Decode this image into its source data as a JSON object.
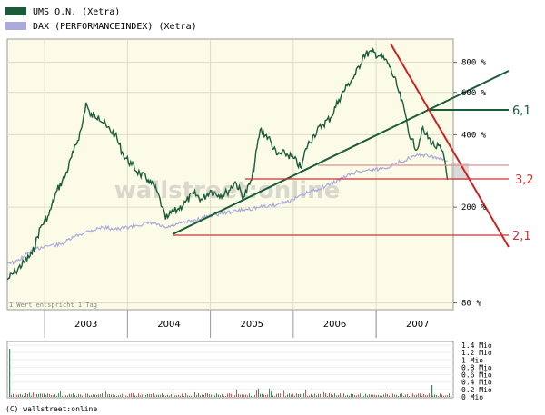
{
  "chart_data": {
    "type": "line",
    "legend": [
      {
        "name": "UMS O.N. (Xetra)",
        "color": "#1a5c3a"
      },
      {
        "name": "DAX (PERFORMANCEINDEX) (Xetra)",
        "color": "#aaaadd"
      }
    ],
    "x_ticks": [
      "2003",
      "2004",
      "2005",
      "2006",
      "2007"
    ],
    "x_range": [
      2002.55,
      2007.93
    ],
    "y_scale": "log",
    "y_range": [
      75,
      1000
    ],
    "y_ticks": [
      {
        "value": 80,
        "label": "80 %"
      },
      {
        "value": 200,
        "label": "200 %"
      },
      {
        "value": 400,
        "label": "400 %"
      },
      {
        "value": 600,
        "label": "600 %"
      },
      {
        "value": 800,
        "label": "800 %"
      }
    ],
    "series": [
      {
        "name": "UMS O.N. (Xetra)",
        "color": "#1a5c3a",
        "points": [
          [
            2002.55,
            100
          ],
          [
            2002.65,
            108
          ],
          [
            2002.75,
            118
          ],
          [
            2002.85,
            128
          ],
          [
            2002.95,
            165
          ],
          [
            2003.05,
            185
          ],
          [
            2003.15,
            235
          ],
          [
            2003.25,
            270
          ],
          [
            2003.35,
            340
          ],
          [
            2003.45,
            430
          ],
          [
            2003.5,
            545
          ],
          [
            2003.55,
            480
          ],
          [
            2003.65,
            480
          ],
          [
            2003.75,
            430
          ],
          [
            2003.85,
            400
          ],
          [
            2003.95,
            330
          ],
          [
            2004.05,
            300
          ],
          [
            2004.15,
            275
          ],
          [
            2004.25,
            260
          ],
          [
            2004.35,
            235
          ],
          [
            2004.42,
            200
          ],
          [
            2004.46,
            178
          ],
          [
            2004.5,
            185
          ],
          [
            2004.6,
            195
          ],
          [
            2004.7,
            210
          ],
          [
            2004.8,
            228
          ],
          [
            2004.9,
            215
          ],
          [
            2005.0,
            235
          ],
          [
            2005.1,
            225
          ],
          [
            2005.2,
            230
          ],
          [
            2005.3,
            255
          ],
          [
            2005.4,
            220
          ],
          [
            2005.5,
            260
          ],
          [
            2005.6,
            420
          ],
          [
            2005.7,
            390
          ],
          [
            2005.8,
            330
          ],
          [
            2005.9,
            335
          ],
          [
            2006.0,
            320
          ],
          [
            2006.1,
            290
          ],
          [
            2006.15,
            350
          ],
          [
            2006.25,
            400
          ],
          [
            2006.35,
            440
          ],
          [
            2006.45,
            470
          ],
          [
            2006.55,
            560
          ],
          [
            2006.65,
            640
          ],
          [
            2006.75,
            710
          ],
          [
            2006.85,
            860
          ],
          [
            2006.95,
            880
          ],
          [
            2007.05,
            850
          ],
          [
            2007.15,
            790
          ],
          [
            2007.25,
            640
          ],
          [
            2007.35,
            490
          ],
          [
            2007.42,
            380
          ],
          [
            2007.5,
            350
          ],
          [
            2007.55,
            420
          ],
          [
            2007.6,
            400
          ],
          [
            2007.7,
            360
          ],
          [
            2007.78,
            350
          ],
          [
            2007.83,
            310
          ],
          [
            2007.86,
            260
          ]
        ]
      },
      {
        "name": "DAX (PERFORMANCEINDEX) (Xetra)",
        "color": "#aaaadd",
        "points": [
          [
            2002.55,
            118
          ],
          [
            2002.65,
            118
          ],
          [
            2002.75,
            125
          ],
          [
            2002.85,
            132
          ],
          [
            2003.0,
            138
          ],
          [
            2003.2,
            140
          ],
          [
            2003.35,
            150
          ],
          [
            2003.5,
            158
          ],
          [
            2003.7,
            165
          ],
          [
            2003.9,
            162
          ],
          [
            2004.1,
            168
          ],
          [
            2004.3,
            172
          ],
          [
            2004.46,
            164
          ],
          [
            2004.6,
            170
          ],
          [
            2004.8,
            176
          ],
          [
            2005.0,
            185
          ],
          [
            2005.2,
            190
          ],
          [
            2005.4,
            195
          ],
          [
            2005.6,
            200
          ],
          [
            2005.8,
            205
          ],
          [
            2006.0,
            215
          ],
          [
            2006.15,
            228
          ],
          [
            2006.3,
            238
          ],
          [
            2006.45,
            250
          ],
          [
            2006.6,
            265
          ],
          [
            2006.75,
            280
          ],
          [
            2006.9,
            285
          ],
          [
            2007.1,
            290
          ],
          [
            2007.25,
            305
          ],
          [
            2007.4,
            320
          ],
          [
            2007.55,
            330
          ],
          [
            2007.65,
            325
          ],
          [
            2007.75,
            320
          ],
          [
            2007.86,
            312
          ]
        ]
      }
    ],
    "annotations": [
      {
        "label": "6,1",
        "value": 605,
        "color": "#1a5c3a"
      },
      {
        "label": "3,2",
        "value": 293,
        "color": "#cc3333"
      },
      {
        "label": "2,1",
        "value": 188,
        "color": "#cc3333"
      }
    ],
    "volume": {
      "y_ticks": [
        "1.4 Mio",
        "1.2 Mio",
        "1 Mio",
        "0.8 Mio",
        "0.6 Mio",
        "0.4 Mio",
        "0.2 Mio",
        "0 Mio"
      ],
      "y_range": [
        0,
        1.4
      ]
    }
  },
  "watermark": "wallstreet:online",
  "footnote": "1 Wert entspricht 1 Tag",
  "copyright": "(C) wallstreet:online"
}
